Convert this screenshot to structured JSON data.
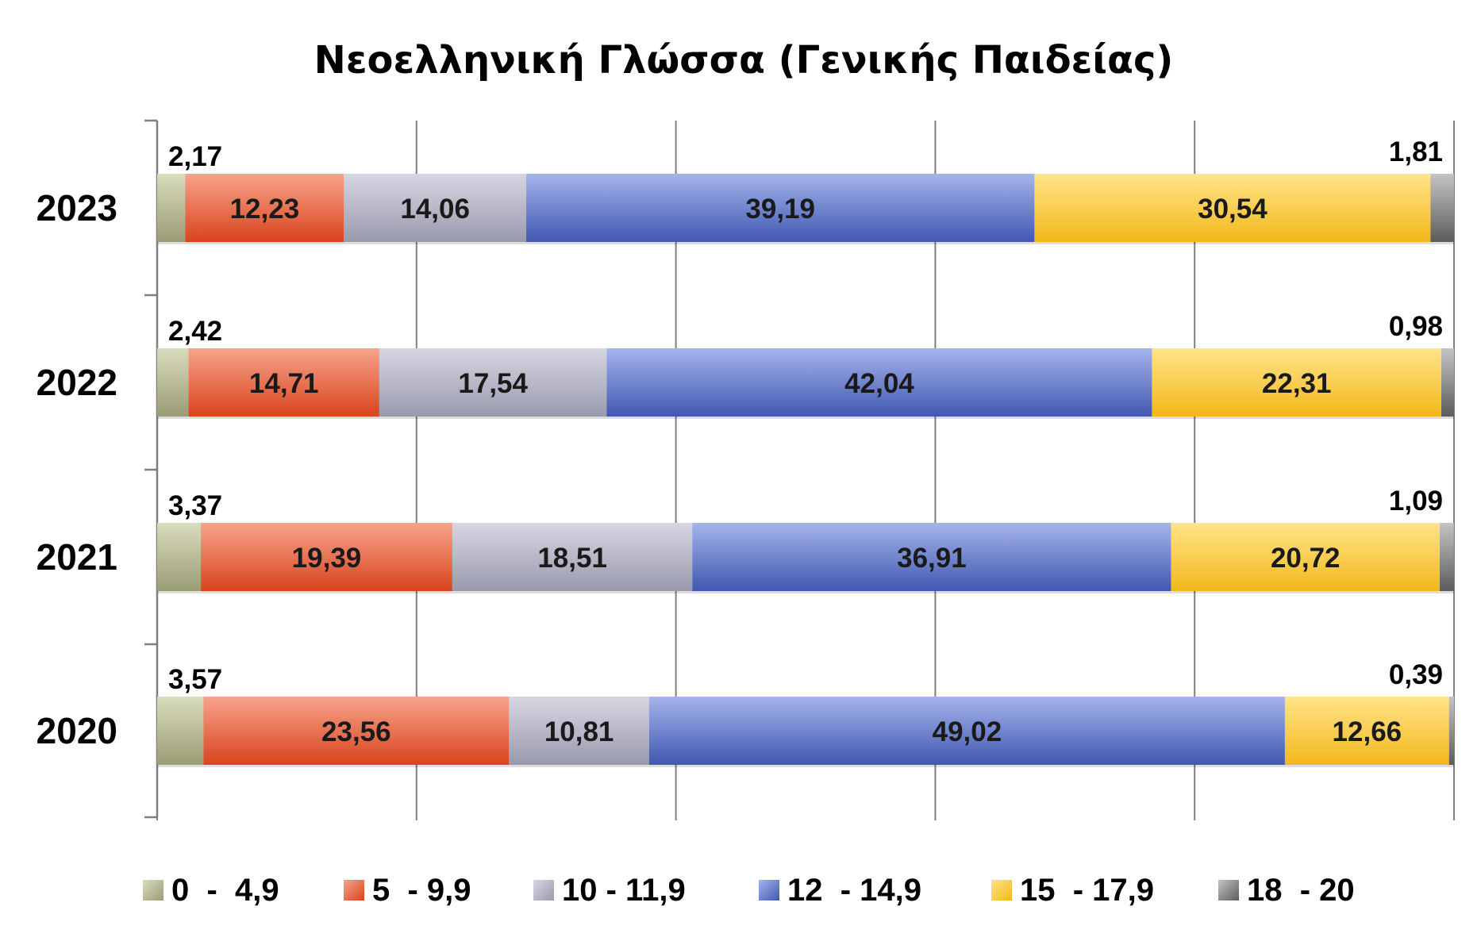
{
  "chart_data": {
    "type": "bar",
    "orientation": "horizontal",
    "stacked": true,
    "title": "Νεοελληνική Γλώσσα (Γενικής Παιδείας)",
    "categories": [
      "2023",
      "2022",
      "2021",
      "2020"
    ],
    "series": [
      {
        "name": "0  -  4,9",
        "values": [
          2.17,
          2.42,
          3.37,
          3.57
        ],
        "labels": [
          "2,17",
          "2,42",
          "3,37",
          "3,57"
        ],
        "color_light": "#d9dcbd",
        "color_dark": "#9a9c74"
      },
      {
        "name": "5  - 9,9",
        "values": [
          12.23,
          14.71,
          19.39,
          23.56
        ],
        "labels": [
          "12,23",
          "14,71",
          "19,39",
          "23,56"
        ],
        "color_light": "#f7a38c",
        "color_dark": "#d9441c"
      },
      {
        "name": "10 - 11,9",
        "values": [
          14.06,
          17.54,
          18.51,
          10.81
        ],
        "labels": [
          "14,06",
          "17,54",
          "18,51",
          "10,81"
        ],
        "color_light": "#d6d6e2",
        "color_dark": "#9a9aae"
      },
      {
        "name": "12  - 14,9",
        "values": [
          39.19,
          42.04,
          36.91,
          49.02
        ],
        "labels": [
          "39,19",
          "42,04",
          "36,91",
          "49,02"
        ],
        "color_light": "#a5b4ec",
        "color_dark": "#4058b0"
      },
      {
        "name": "15  - 17,9",
        "values": [
          30.54,
          22.31,
          20.72,
          12.66
        ],
        "labels": [
          "30,54",
          "22,31",
          "20,72",
          "12,66"
        ],
        "color_light": "#ffe48a",
        "color_dark": "#f2b81a"
      },
      {
        "name": "18  - 20",
        "values": [
          1.81,
          0.98,
          1.09,
          0.39
        ],
        "labels": [
          "1,81",
          "0,98",
          "1,09",
          "0,39"
        ],
        "color_light": "#c4c4c4",
        "color_dark": "#5c5c5c"
      }
    ],
    "outside_labels": [
      "0  -  4,9",
      "18  - 20"
    ],
    "xlim": [
      0,
      100
    ],
    "x_gridlines": [
      0,
      20,
      40,
      60,
      80,
      100
    ],
    "grid": true,
    "xlabel": "",
    "ylabel": "",
    "legend_position": "bottom"
  }
}
